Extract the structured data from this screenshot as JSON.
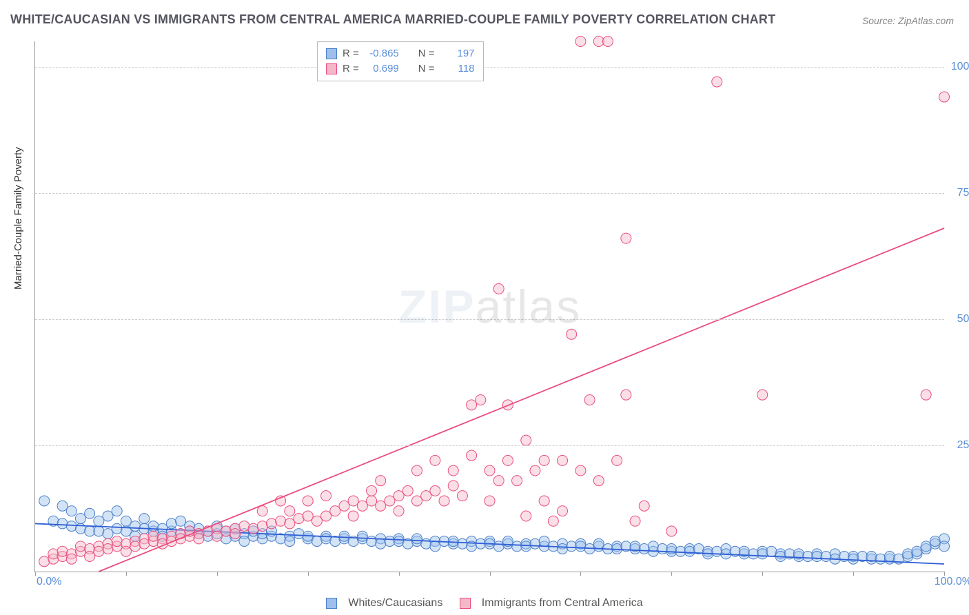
{
  "title": "WHITE/CAUCASIAN VS IMMIGRANTS FROM CENTRAL AMERICA MARRIED-COUPLE FAMILY POVERTY CORRELATION CHART",
  "source": "Source: ZipAtlas.com",
  "ylabel": "Married-Couple Family Poverty",
  "watermark_a": "ZIP",
  "watermark_b": "atlas",
  "chart": {
    "type": "scatter",
    "xlim": [
      0,
      100
    ],
    "ylim": [
      0,
      105
    ],
    "xtick_step": 10,
    "yticks": [
      25,
      50,
      75,
      100
    ],
    "ytick_labels": [
      "25.0%",
      "50.0%",
      "75.0%",
      "100.0%"
    ],
    "x_start_label": "0.0%",
    "x_end_label": "100.0%",
    "background_color": "#ffffff",
    "grid_color": "#cccccc",
    "marker_radius": 7.5,
    "marker_opacity": 0.45,
    "line_width": 1.8,
    "series": [
      {
        "id": "blue",
        "label": "Whites/Caucasians",
        "color_fill": "#9ec0ea",
        "color_stroke": "#4b7fc9",
        "R": "-0.865",
        "N": "197",
        "trend": {
          "x1": 0,
          "y1": 9.5,
          "x2": 100,
          "y2": 1.5,
          "color": "#2f5fd6"
        },
        "points": [
          [
            1,
            14
          ],
          [
            2,
            10
          ],
          [
            3,
            9.5
          ],
          [
            3,
            13
          ],
          [
            4,
            9
          ],
          [
            4,
            12
          ],
          [
            5,
            8.5
          ],
          [
            5,
            10.5
          ],
          [
            6,
            8
          ],
          [
            6,
            11.5
          ],
          [
            7,
            8
          ],
          [
            7,
            10
          ],
          [
            8,
            7.5
          ],
          [
            8,
            11
          ],
          [
            9,
            8.5
          ],
          [
            9,
            12
          ],
          [
            10,
            8
          ],
          [
            10,
            10
          ],
          [
            11,
            9
          ],
          [
            11,
            7
          ],
          [
            12,
            8.5
          ],
          [
            12,
            10.5
          ],
          [
            13,
            8
          ],
          [
            13,
            9
          ],
          [
            14,
            8.5
          ],
          [
            14,
            7
          ],
          [
            15,
            8
          ],
          [
            15,
            9.5
          ],
          [
            16,
            7.5
          ],
          [
            16,
            10
          ],
          [
            17,
            8
          ],
          [
            17,
            9
          ],
          [
            18,
            7.5
          ],
          [
            18,
            8.5
          ],
          [
            19,
            8
          ],
          [
            19,
            7
          ],
          [
            20,
            7.5
          ],
          [
            20,
            9
          ],
          [
            21,
            8
          ],
          [
            21,
            6.5
          ],
          [
            22,
            7
          ],
          [
            22,
            8.5
          ],
          [
            23,
            7.5
          ],
          [
            23,
            6
          ],
          [
            24,
            7
          ],
          [
            24,
            8
          ],
          [
            25,
            6.5
          ],
          [
            25,
            7.5
          ],
          [
            26,
            7
          ],
          [
            26,
            8
          ],
          [
            27,
            6.5
          ],
          [
            28,
            7
          ],
          [
            28,
            6
          ],
          [
            29,
            7.5
          ],
          [
            30,
            6.5
          ],
          [
            30,
            7
          ],
          [
            31,
            6
          ],
          [
            32,
            7
          ],
          [
            32,
            6.5
          ],
          [
            33,
            6
          ],
          [
            34,
            6.5
          ],
          [
            34,
            7
          ],
          [
            35,
            6
          ],
          [
            36,
            6.5
          ],
          [
            36,
            7
          ],
          [
            37,
            6
          ],
          [
            38,
            6.5
          ],
          [
            38,
            5.5
          ],
          [
            39,
            6
          ],
          [
            40,
            6.5
          ],
          [
            40,
            6
          ],
          [
            41,
            5.5
          ],
          [
            42,
            6
          ],
          [
            42,
            6.5
          ],
          [
            43,
            5.5
          ],
          [
            44,
            6
          ],
          [
            44,
            5
          ],
          [
            45,
            6
          ],
          [
            46,
            5.5
          ],
          [
            46,
            6
          ],
          [
            47,
            5.5
          ],
          [
            48,
            6
          ],
          [
            48,
            5
          ],
          [
            49,
            5.5
          ],
          [
            50,
            6
          ],
          [
            50,
            5.5
          ],
          [
            51,
            5
          ],
          [
            52,
            5.5
          ],
          [
            52,
            6
          ],
          [
            53,
            5
          ],
          [
            54,
            5.5
          ],
          [
            54,
            5
          ],
          [
            55,
            5.5
          ],
          [
            56,
            5
          ],
          [
            56,
            6
          ],
          [
            57,
            5
          ],
          [
            58,
            5.5
          ],
          [
            58,
            4.5
          ],
          [
            59,
            5
          ],
          [
            60,
            5.5
          ],
          [
            60,
            5
          ],
          [
            61,
            4.5
          ],
          [
            62,
            5
          ],
          [
            62,
            5.5
          ],
          [
            63,
            4.5
          ],
          [
            64,
            5
          ],
          [
            64,
            4.5
          ],
          [
            65,
            5
          ],
          [
            66,
            4.5
          ],
          [
            66,
            5
          ],
          [
            67,
            4.5
          ],
          [
            68,
            4
          ],
          [
            68,
            5
          ],
          [
            69,
            4.5
          ],
          [
            70,
            4
          ],
          [
            70,
            4.5
          ],
          [
            71,
            4
          ],
          [
            72,
            4.5
          ],
          [
            72,
            4
          ],
          [
            73,
            4.5
          ],
          [
            74,
            4
          ],
          [
            74,
            3.5
          ],
          [
            75,
            4
          ],
          [
            76,
            4.5
          ],
          [
            76,
            3.5
          ],
          [
            77,
            4
          ],
          [
            78,
            3.5
          ],
          [
            78,
            4
          ],
          [
            79,
            3.5
          ],
          [
            80,
            4
          ],
          [
            80,
            3.5
          ],
          [
            81,
            4
          ],
          [
            82,
            3.5
          ],
          [
            82,
            3
          ],
          [
            83,
            3.5
          ],
          [
            84,
            3
          ],
          [
            84,
            3.5
          ],
          [
            85,
            3
          ],
          [
            86,
            3.5
          ],
          [
            86,
            3
          ],
          [
            87,
            3
          ],
          [
            88,
            3.5
          ],
          [
            88,
            2.5
          ],
          [
            89,
            3
          ],
          [
            90,
            3
          ],
          [
            90,
            2.5
          ],
          [
            91,
            3
          ],
          [
            92,
            2.5
          ],
          [
            92,
            3
          ],
          [
            93,
            2.5
          ],
          [
            94,
            2.5
          ],
          [
            94,
            3
          ],
          [
            95,
            2.5
          ],
          [
            96,
            3
          ],
          [
            96,
            3.5
          ],
          [
            97,
            3.5
          ],
          [
            97,
            4
          ],
          [
            98,
            4.5
          ],
          [
            98,
            5
          ],
          [
            99,
            5.5
          ],
          [
            99,
            6
          ],
          [
            100,
            6.5
          ],
          [
            100,
            5
          ]
        ]
      },
      {
        "id": "pink",
        "label": "Immigrants from Central America",
        "color_fill": "#f5b8c8",
        "color_stroke": "#e94d7f",
        "R": "0.699",
        "N": "118",
        "trend": {
          "x1": 7,
          "y1": 0,
          "x2": 100,
          "y2": 68,
          "color": "#e94d7f"
        },
        "points": [
          [
            1,
            2
          ],
          [
            2,
            2.5
          ],
          [
            2,
            3.5
          ],
          [
            3,
            3
          ],
          [
            3,
            4
          ],
          [
            4,
            3.5
          ],
          [
            4,
            2.5
          ],
          [
            5,
            4
          ],
          [
            5,
            5
          ],
          [
            6,
            4.5
          ],
          [
            6,
            3
          ],
          [
            7,
            5
          ],
          [
            7,
            4
          ],
          [
            8,
            5.5
          ],
          [
            8,
            4.5
          ],
          [
            9,
            5
          ],
          [
            9,
            6
          ],
          [
            10,
            5.5
          ],
          [
            10,
            4
          ],
          [
            11,
            6
          ],
          [
            11,
            5
          ],
          [
            12,
            6.5
          ],
          [
            12,
            5.5
          ],
          [
            13,
            6
          ],
          [
            13,
            7
          ],
          [
            14,
            6.5
          ],
          [
            14,
            5.5
          ],
          [
            15,
            7
          ],
          [
            15,
            6
          ],
          [
            16,
            7.5
          ],
          [
            16,
            6.5
          ],
          [
            17,
            7
          ],
          [
            17,
            8
          ],
          [
            18,
            7.5
          ],
          [
            18,
            6.5
          ],
          [
            19,
            8
          ],
          [
            20,
            8.5
          ],
          [
            20,
            7
          ],
          [
            21,
            8
          ],
          [
            22,
            8.5
          ],
          [
            22,
            7.5
          ],
          [
            23,
            9
          ],
          [
            24,
            8.5
          ],
          [
            25,
            9
          ],
          [
            25,
            12
          ],
          [
            26,
            9.5
          ],
          [
            27,
            10
          ],
          [
            27,
            14
          ],
          [
            28,
            9.5
          ],
          [
            28,
            12
          ],
          [
            29,
            10.5
          ],
          [
            30,
            11
          ],
          [
            30,
            14
          ],
          [
            31,
            10
          ],
          [
            32,
            11
          ],
          [
            32,
            15
          ],
          [
            33,
            12
          ],
          [
            34,
            13
          ],
          [
            35,
            14
          ],
          [
            35,
            11
          ],
          [
            36,
            13
          ],
          [
            37,
            14
          ],
          [
            37,
            16
          ],
          [
            38,
            13
          ],
          [
            38,
            18
          ],
          [
            39,
            14
          ],
          [
            40,
            15
          ],
          [
            40,
            12
          ],
          [
            41,
            16
          ],
          [
            42,
            14
          ],
          [
            42,
            20
          ],
          [
            43,
            15
          ],
          [
            44,
            16
          ],
          [
            44,
            22
          ],
          [
            45,
            14
          ],
          [
            46,
            17
          ],
          [
            46,
            20
          ],
          [
            47,
            15
          ],
          [
            48,
            33
          ],
          [
            48,
            23
          ],
          [
            49,
            34
          ],
          [
            50,
            14
          ],
          [
            50,
            20
          ],
          [
            51,
            18
          ],
          [
            51,
            56
          ],
          [
            52,
            22
          ],
          [
            52,
            33
          ],
          [
            53,
            18
          ],
          [
            54,
            26
          ],
          [
            54,
            11
          ],
          [
            55,
            20
          ],
          [
            56,
            14
          ],
          [
            56,
            22
          ],
          [
            57,
            10
          ],
          [
            58,
            22
          ],
          [
            58,
            12
          ],
          [
            59,
            47
          ],
          [
            60,
            105
          ],
          [
            60,
            20
          ],
          [
            61,
            34
          ],
          [
            62,
            105
          ],
          [
            62,
            18
          ],
          [
            63,
            105
          ],
          [
            64,
            22
          ],
          [
            65,
            35
          ],
          [
            65,
            66
          ],
          [
            66,
            10
          ],
          [
            67,
            13
          ],
          [
            70,
            8
          ],
          [
            75,
            97
          ],
          [
            80,
            35
          ],
          [
            98,
            35
          ],
          [
            100,
            94
          ]
        ]
      }
    ]
  },
  "legend_top_labels": {
    "R": "R =",
    "N": "N ="
  }
}
